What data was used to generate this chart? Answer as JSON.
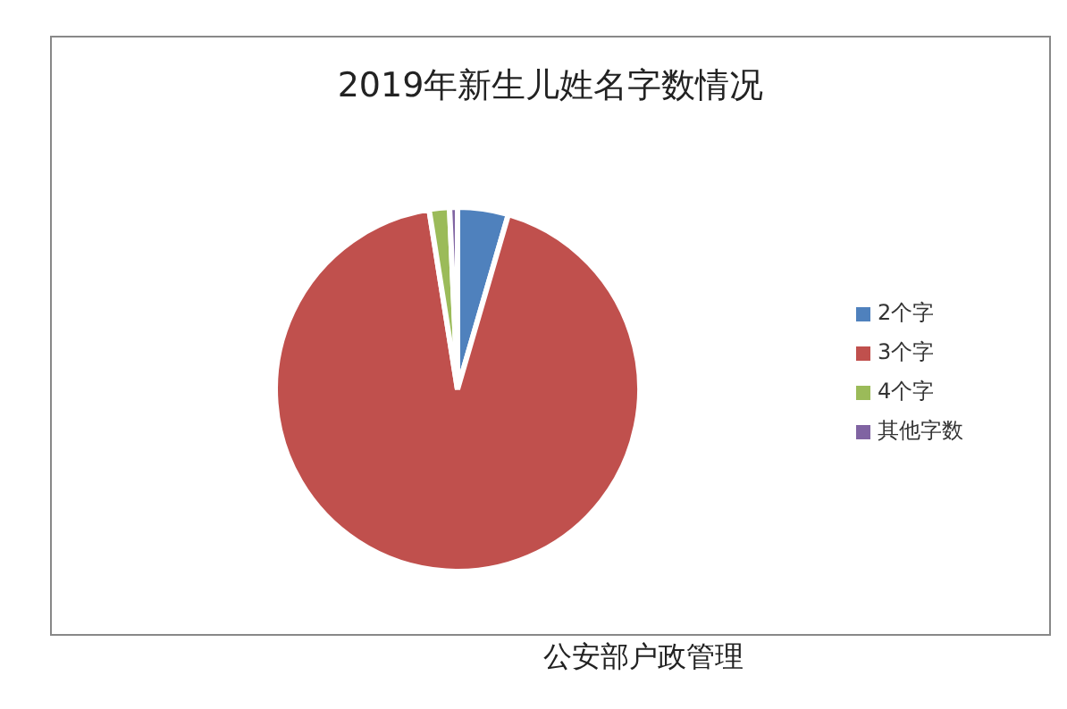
{
  "chart_data": {
    "type": "pie",
    "title": "2019年新生儿姓名字数情况",
    "categories": [
      "2个字",
      "3个字",
      "4个字",
      "其他字数"
    ],
    "values": [
      4.5,
      93,
      1.8,
      0.7
    ],
    "colors": [
      "#4f81bd",
      "#c0504d",
      "#9bbb59",
      "#8064a2"
    ],
    "legend": "right",
    "annotations": [
      "公安部户政管理"
    ]
  }
}
